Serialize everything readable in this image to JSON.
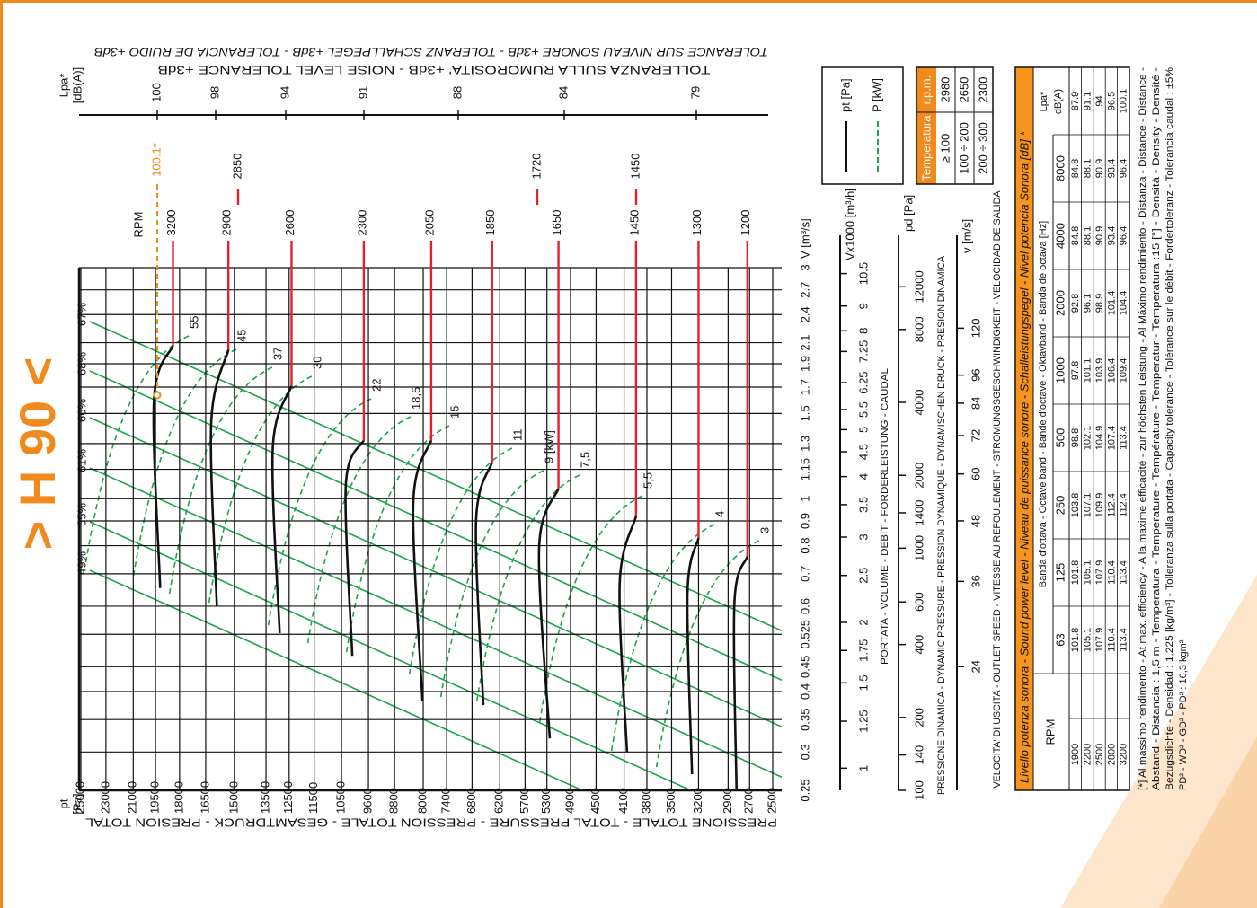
{
  "title": "> H 90 <",
  "tolerance_lines": [
    "TOLERANCE SUR NIVEAU SONORE +3dB - TOLERANZ SCHALLPEGEL +3dB - TOLERANCIA DE RUIDO +3dB",
    "TOLLERANZA SULLA RUMOROSITA' +3dB - NOISE LEVEL TOLERANCE +3dB"
  ],
  "chart_data": {
    "type": "fan-performance",
    "ylabel": [
      "pt",
      "[Pa]"
    ],
    "ytitle": "PRESSIONE TOTALE - TOTAL PRESSURE - PRESSION TOTALE - GESAMTDRUCK - PRESION TOTAL",
    "ylim": [
      2500,
      25000
    ],
    "yscale": "log",
    "yticks": [
      25000,
      23000,
      21000,
      19500,
      18000,
      16500,
      15000,
      13500,
      12500,
      11500,
      10500,
      9600,
      8800,
      8000,
      7400,
      6800,
      6200,
      5700,
      5300,
      4900,
      4500,
      4100,
      3800,
      3500,
      3200,
      2900,
      2700,
      2500
    ],
    "xlabel": "V [m³/s]",
    "xlim": [
      0.25,
      3
    ],
    "xscale": "log",
    "xticks": [
      0.25,
      0.3,
      0.35,
      0.4,
      0.45,
      0.525,
      0.6,
      0.7,
      0.8,
      0.9,
      1,
      1.15,
      1.3,
      1.5,
      1.7,
      1.9,
      2.1,
      2.4,
      2.7,
      3
    ],
    "grid": true,
    "rpm_label": "RPM",
    "rpm_line_color": "#e3202b",
    "curve_color": "#111111",
    "curves": [
      {
        "rpm": 3200,
        "pt": [
          18400,
          19600,
          19200
        ],
        "v": [
          2.07,
          1.6,
          0.654
        ]
      },
      {
        "rpm": 2900,
        "pt": [
          15300,
          16200,
          15900
        ],
        "v": [
          2.03,
          1.44,
          0.6
        ]
      },
      {
        "rpm": 2600,
        "pt": [
          12400,
          13200,
          12900
        ],
        "v": [
          1.71,
          1.27,
          0.528
        ]
      },
      {
        "rpm": 2300,
        "pt": [
          9750,
          10350,
          10130
        ],
        "v": [
          1.32,
          1.07,
          0.474
        ]
      },
      {
        "rpm": 2050,
        "pt": [
          7790,
          8270,
          8020
        ],
        "v": [
          1.32,
          0.98,
          0.383
        ]
      },
      {
        "rpm": 1850,
        "pt": [
          6360,
          6710,
          6550
        ],
        "v": [
          1.19,
          0.9,
          0.375
        ]
      },
      {
        "rpm": 1650,
        "pt": [
          5100,
          5440,
          5250
        ],
        "v": [
          1.05,
          0.79,
          0.32
        ]
      },
      {
        "rpm": 1450,
        "pt": [
          3940,
          4160,
          4060
        ],
        "v": [
          0.92,
          0.67,
          0.3
        ]
      },
      {
        "rpm": 1300,
        "pt": [
          3200,
          3320,
          3270
        ],
        "v": [
          0.83,
          0.64,
          0.27
        ]
      },
      {
        "rpm": 1200,
        "pt": [
          2720,
          2840,
          2820
        ],
        "v": [
          0.76,
          0.61,
          0.25
        ]
      }
    ],
    "limit_rpm": [
      2850,
      1720,
      1450
    ],
    "efficiency": {
      "color": "#1aa34a",
      "values": [
        67,
        68,
        66,
        61,
        55,
        49
      ],
      "value_labels": [
        "67%",
        "68%",
        "66%",
        "61%",
        "55%",
        "49%"
      ]
    },
    "power": {
      "color": "#1aa34a",
      "values": [
        55,
        45,
        37,
        30,
        22,
        18.5,
        15,
        11,
        9,
        7.5,
        5.5,
        4,
        3
      ],
      "value_labels": [
        "55",
        "45",
        "37",
        "30",
        "22",
        "18,5",
        "15",
        "11",
        "9 [kW]",
        "7,5",
        "5,5",
        "4",
        "3"
      ]
    },
    "lpa": {
      "label": [
        "Lpa*",
        "[dB(A)]"
      ],
      "ticks": [
        100,
        98,
        94,
        91,
        88,
        84,
        79
      ],
      "max_point": {
        "value": 100.1,
        "label": "100.1*"
      },
      "color": "#f08a1c"
    },
    "secondary_axes": [
      {
        "label": "Vx1000 [m³/h]",
        "title": "PORTATA - VOLUME - DEBIT - FORDERLEISTUNG - CAUDAL",
        "lim": [
          0.9,
          10.8
        ],
        "ticks": [
          1,
          1.25,
          1.5,
          1.75,
          2,
          2.5,
          3,
          3.5,
          4,
          4.5,
          5,
          5.5,
          6.25,
          7.25,
          8,
          9,
          10.5
        ]
      },
      {
        "label": "pd [Pa]",
        "title": "PRESSIONE DINAMICA - DYNAMIC PRESSURE - PRESSION DYNAMIQUE - DYNAMISCHEN DRUCK - PRESION DINAMICA",
        "lim": [
          100,
          14400
        ],
        "ticks": [
          100,
          140,
          200,
          400,
          600,
          1000,
          1400,
          2000,
          4000,
          8000,
          12000
        ]
      },
      {
        "label": "v [m/s]",
        "title": "VELOCITA' DI USCITA - OUTLET SPEED - VITESSE AU REFOULEMENT - STROMUNGSGESCHWINDIGKEIT - VELOCIDAD DE SALIDA",
        "lim": [
          13.33,
          160
        ],
        "ticks": [
          24,
          36,
          48,
          60,
          72,
          84,
          96,
          120
        ]
      }
    ],
    "legend": [
      {
        "name": "pt [Pa]",
        "color": "#111111",
        "style": "solid"
      },
      {
        "name": "P [kW]",
        "color": "#1aa34a",
        "style": "dashed"
      }
    ]
  },
  "temperature_table": {
    "header": [
      "Temperatura",
      "r.p.m."
    ],
    "rows": [
      [
        "≥ 100",
        2980
      ],
      [
        "100 ÷ 200",
        2650
      ],
      [
        "200 ÷ 300",
        2300
      ]
    ]
  },
  "sound_table": {
    "title": "Livello potenza sonora - Sound power level - Niveau de puissance sonore - Schalleistungspegel - Nivel potencia Sonora [dB] *",
    "rpm_header": "RPM",
    "band_header": "Banda d'ottava - Octave band - Bande d'octave - Oktavband - Banda de octava [Hz]",
    "lpa_header": [
      "Lpa*",
      "dB(A)"
    ],
    "bands": [
      63,
      125,
      250,
      500,
      1000,
      2000,
      4000,
      8000
    ],
    "rows": [
      [
        1900,
        101.8,
        101.8,
        103.8,
        98.8,
        97.8,
        92.8,
        84.8,
        84.8,
        87.9
      ],
      [
        2200,
        105.1,
        105.1,
        107.1,
        102.1,
        101.1,
        96.1,
        88.1,
        88.1,
        91.1
      ],
      [
        2500,
        107.9,
        107.9,
        109.9,
        104.9,
        103.9,
        98.9,
        90.9,
        90.9,
        94
      ],
      [
        2800,
        110.4,
        110.4,
        112.4,
        107.4,
        106.4,
        101.4,
        93.4,
        93.4,
        96.5
      ],
      [
        3200,
        113.4,
        113.4,
        112.4,
        113.4,
        109.4,
        104.4,
        96.4,
        96.4,
        100.1
      ]
    ]
  },
  "footnote": [
    "[*] Al massimo rendimento - At max. efficiency - A la maxime efficacité - zur höchsten Leistung - Al Máximo rendimiento - Distanza - Distance - Distance -",
    "Abstand - Distancia : 1,5 m - Temperatura - Temperature - Température - Temperatur - Temperatura :15 [°] - Densità - Density - Densité -",
    "Bezugsdichte - Densidad : 1,225 [kg/m³] - Tolleranza sulla portata - Capacity tolerance - Tolérance sur le débit - Fordertoleranz - Tolerancia caudal : ±5%",
    "PD² - WD² - GD² - PD² : 16,3 kgm²"
  ]
}
